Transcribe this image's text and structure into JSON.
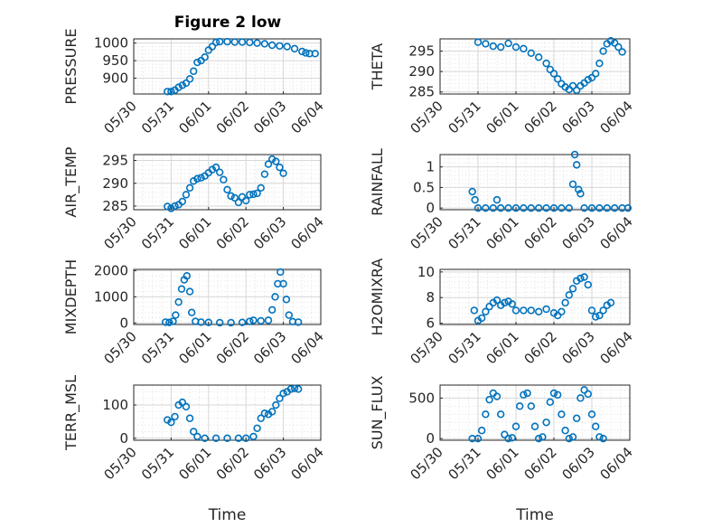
{
  "figure": {
    "title": "Figure 2 low"
  },
  "colors": {
    "marker": "#0072BD",
    "axis": "#262626",
    "grid": "#d7d7d7"
  },
  "chart_data": [
    {
      "type": "scatter",
      "id": "pressure",
      "ylabel": "PRESSURE",
      "yticks": [
        "900",
        "950",
        "1000"
      ],
      "ytick_values": [
        900,
        950,
        1000
      ],
      "ylim": [
        855,
        1012
      ],
      "x_start": "05/30",
      "xticks": [
        "05/30",
        "05/31",
        "06/01",
        "06/02",
        "06/03",
        "06/04"
      ],
      "xlim_days": [
        0,
        5
      ],
      "xlabel": "",
      "points": [
        [
          0.9,
          862
        ],
        [
          1.0,
          862
        ],
        [
          1.1,
          866
        ],
        [
          1.2,
          874
        ],
        [
          1.3,
          880
        ],
        [
          1.4,
          886
        ],
        [
          1.5,
          898
        ],
        [
          1.6,
          920
        ],
        [
          1.7,
          945
        ],
        [
          1.8,
          950
        ],
        [
          1.9,
          960
        ],
        [
          2.0,
          980
        ],
        [
          2.1,
          990
        ],
        [
          2.2,
          1002
        ],
        [
          2.3,
          1004
        ],
        [
          2.5,
          1004
        ],
        [
          2.7,
          1003
        ],
        [
          2.9,
          1003
        ],
        [
          3.1,
          1002
        ],
        [
          3.3,
          1000
        ],
        [
          3.5,
          998
        ],
        [
          3.7,
          994
        ],
        [
          3.9,
          992
        ],
        [
          4.1,
          990
        ],
        [
          4.3,
          984
        ],
        [
          4.5,
          976
        ],
        [
          4.6,
          972
        ],
        [
          4.7,
          970
        ],
        [
          4.85,
          970
        ]
      ]
    },
    {
      "type": "scatter",
      "id": "theta",
      "ylabel": "THETA",
      "yticks": [
        "285",
        "290",
        "295"
      ],
      "ytick_values": [
        285,
        290,
        295
      ],
      "ylim": [
        284.5,
        298
      ],
      "x_start": "05/30",
      "xticks": [
        "05/30",
        "05/31",
        "06/01",
        "06/02",
        "06/03",
        "06/04"
      ],
      "xlim_days": [
        0,
        5
      ],
      "xlabel": "",
      "points": [
        [
          1.0,
          297.2
        ],
        [
          1.2,
          296.8
        ],
        [
          1.4,
          296.2
        ],
        [
          1.6,
          296.0
        ],
        [
          1.8,
          296.9
        ],
        [
          2.0,
          296.0
        ],
        [
          2.2,
          295.6
        ],
        [
          2.4,
          294.5
        ],
        [
          2.6,
          293.5
        ],
        [
          2.8,
          292.0
        ],
        [
          2.9,
          290.5
        ],
        [
          3.0,
          289.5
        ],
        [
          3.1,
          288.2
        ],
        [
          3.2,
          287.0
        ],
        [
          3.3,
          286.2
        ],
        [
          3.4,
          285.6
        ],
        [
          3.5,
          286.5
        ],
        [
          3.6,
          285.4
        ],
        [
          3.7,
          286.5
        ],
        [
          3.8,
          287.2
        ],
        [
          3.9,
          288.0
        ],
        [
          4.0,
          288.5
        ],
        [
          4.1,
          289.5
        ],
        [
          4.2,
          292.0
        ],
        [
          4.3,
          295.0
        ],
        [
          4.4,
          296.8
        ],
        [
          4.5,
          297.5
        ],
        [
          4.6,
          297.0
        ],
        [
          4.7,
          296.0
        ],
        [
          4.8,
          294.8
        ]
      ]
    },
    {
      "type": "scatter",
      "id": "air_temp",
      "ylabel": "AIR_TEMP",
      "yticks": [
        "285",
        "290",
        "295"
      ],
      "ytick_values": [
        285,
        290,
        295
      ],
      "ylim": [
        284.2,
        296.3
      ],
      "x_start": "05/30",
      "xticks": [
        "05/30",
        "05/31",
        "06/01",
        "06/02",
        "06/03",
        "06/04"
      ],
      "xlim_days": [
        0,
        5
      ],
      "xlabel": "",
      "points": [
        [
          0.9,
          284.9
        ],
        [
          1.0,
          284.5
        ],
        [
          1.1,
          285.0
        ],
        [
          1.2,
          285.3
        ],
        [
          1.3,
          286.0
        ],
        [
          1.4,
          287.5
        ],
        [
          1.5,
          289.0
        ],
        [
          1.6,
          290.5
        ],
        [
          1.7,
          291.0
        ],
        [
          1.8,
          291.2
        ],
        [
          1.9,
          291.6
        ],
        [
          2.0,
          292.3
        ],
        [
          2.1,
          293.0
        ],
        [
          2.2,
          293.5
        ],
        [
          2.3,
          292.4
        ],
        [
          2.4,
          290.8
        ],
        [
          2.5,
          288.6
        ],
        [
          2.6,
          287.2
        ],
        [
          2.7,
          286.8
        ],
        [
          2.8,
          285.8
        ],
        [
          2.9,
          287.0
        ],
        [
          3.0,
          286.2
        ],
        [
          3.1,
          287.5
        ],
        [
          3.2,
          287.6
        ],
        [
          3.3,
          287.8
        ],
        [
          3.4,
          289.0
        ],
        [
          3.5,
          292.0
        ],
        [
          3.6,
          294.2
        ],
        [
          3.7,
          295.3
        ],
        [
          3.8,
          294.8
        ],
        [
          3.9,
          293.5
        ],
        [
          4.0,
          292.2
        ]
      ]
    },
    {
      "type": "scatter",
      "id": "rainfall",
      "ylabel": "RAINFALL",
      "yticks": [
        "0",
        "0.5",
        "1"
      ],
      "ytick_values": [
        0,
        0.5,
        1
      ],
      "ylim": [
        -0.04,
        1.3
      ],
      "x_start": "05/30",
      "xticks": [
        "05/30",
        "05/31",
        "06/01",
        "06/02",
        "06/03",
        "06/04"
      ],
      "xlim_days": [
        0,
        5
      ],
      "xlabel": "",
      "points": [
        [
          0.85,
          0.4
        ],
        [
          0.92,
          0.2
        ],
        [
          1.0,
          0
        ],
        [
          1.2,
          0
        ],
        [
          1.4,
          0
        ],
        [
          1.5,
          0.2
        ],
        [
          1.6,
          0
        ],
        [
          1.8,
          0
        ],
        [
          2.0,
          0
        ],
        [
          2.2,
          0
        ],
        [
          2.4,
          0
        ],
        [
          2.6,
          0
        ],
        [
          2.8,
          0
        ],
        [
          3.0,
          0
        ],
        [
          3.2,
          0
        ],
        [
          3.4,
          0
        ],
        [
          3.5,
          0.58
        ],
        [
          3.55,
          1.3
        ],
        [
          3.6,
          1.05
        ],
        [
          3.65,
          0.45
        ],
        [
          3.7,
          0.35
        ],
        [
          3.8,
          0
        ],
        [
          4.0,
          0
        ],
        [
          4.2,
          0
        ],
        [
          4.4,
          0
        ],
        [
          4.6,
          0
        ],
        [
          4.8,
          0
        ],
        [
          4.95,
          0
        ]
      ]
    },
    {
      "type": "scatter",
      "id": "mixdepth",
      "ylabel": "MIXDEPTH",
      "yticks": [
        "0",
        "1000",
        "2000"
      ],
      "ytick_values": [
        0,
        1000,
        2000
      ],
      "ylim": [
        -60,
        2050
      ],
      "x_start": "05/30",
      "xticks": [
        "05/30",
        "05/31",
        "06/01",
        "06/02",
        "06/03",
        "06/04"
      ],
      "xlim_days": [
        0,
        5
      ],
      "xlabel": "",
      "points": [
        [
          0.85,
          30
        ],
        [
          0.95,
          20
        ],
        [
          1.05,
          60
        ],
        [
          1.12,
          300
        ],
        [
          1.2,
          800
        ],
        [
          1.28,
          1300
        ],
        [
          1.35,
          1650
        ],
        [
          1.42,
          1800
        ],
        [
          1.5,
          1200
        ],
        [
          1.55,
          400
        ],
        [
          1.65,
          60
        ],
        [
          1.8,
          30
        ],
        [
          2.0,
          20
        ],
        [
          2.3,
          10
        ],
        [
          2.6,
          10
        ],
        [
          2.9,
          20
        ],
        [
          3.1,
          60
        ],
        [
          3.2,
          100
        ],
        [
          3.4,
          80
        ],
        [
          3.6,
          100
        ],
        [
          3.7,
          500
        ],
        [
          3.78,
          1000
        ],
        [
          3.85,
          1500
        ],
        [
          3.92,
          1950
        ],
        [
          4.0,
          1500
        ],
        [
          4.08,
          900
        ],
        [
          4.15,
          300
        ],
        [
          4.25,
          50
        ],
        [
          4.4,
          30
        ]
      ]
    },
    {
      "type": "scatter",
      "id": "h2omixra",
      "ylabel": "H2OMIXRA",
      "yticks": [
        "6",
        "8",
        "10"
      ],
      "ytick_values": [
        6,
        8,
        10
      ],
      "ylim": [
        5.9,
        10.2
      ],
      "x_start": "05/30",
      "xticks": [
        "05/30",
        "05/31",
        "06/01",
        "06/02",
        "06/03",
        "06/04"
      ],
      "xlim_days": [
        0,
        5
      ],
      "xlabel": "",
      "points": [
        [
          0.9,
          7.0
        ],
        [
          1.0,
          6.2
        ],
        [
          1.1,
          6.4
        ],
        [
          1.2,
          6.9
        ],
        [
          1.3,
          7.3
        ],
        [
          1.4,
          7.6
        ],
        [
          1.5,
          7.8
        ],
        [
          1.6,
          7.4
        ],
        [
          1.7,
          7.6
        ],
        [
          1.8,
          7.7
        ],
        [
          1.9,
          7.5
        ],
        [
          2.0,
          7.0
        ],
        [
          2.2,
          7.0
        ],
        [
          2.4,
          7.0
        ],
        [
          2.6,
          6.9
        ],
        [
          2.8,
          7.1
        ],
        [
          3.0,
          6.8
        ],
        [
          3.1,
          6.6
        ],
        [
          3.2,
          6.9
        ],
        [
          3.3,
          7.6
        ],
        [
          3.4,
          8.2
        ],
        [
          3.5,
          8.7
        ],
        [
          3.6,
          9.3
        ],
        [
          3.7,
          9.5
        ],
        [
          3.8,
          9.6
        ],
        [
          3.9,
          9.0
        ],
        [
          4.0,
          7.0
        ],
        [
          4.1,
          6.5
        ],
        [
          4.2,
          6.6
        ],
        [
          4.3,
          7.0
        ],
        [
          4.4,
          7.4
        ],
        [
          4.5,
          7.6
        ]
      ]
    },
    {
      "type": "scatter",
      "id": "terr_msl",
      "ylabel": "TERR_MSL",
      "yticks": [
        "0",
        "100"
      ],
      "ytick_values": [
        0,
        100
      ],
      "ylim": [
        -6,
        160
      ],
      "x_start": "05/30",
      "xticks": [
        "05/30",
        "05/31",
        "06/01",
        "06/02",
        "06/03",
        "06/04"
      ],
      "xlim_days": [
        0,
        5
      ],
      "xlabel": "Time",
      "points": [
        [
          0.9,
          55
        ],
        [
          1.0,
          48
        ],
        [
          1.1,
          65
        ],
        [
          1.2,
          100
        ],
        [
          1.3,
          108
        ],
        [
          1.4,
          95
        ],
        [
          1.5,
          60
        ],
        [
          1.6,
          20
        ],
        [
          1.7,
          5
        ],
        [
          1.9,
          0
        ],
        [
          2.2,
          0
        ],
        [
          2.5,
          0
        ],
        [
          2.8,
          0
        ],
        [
          3.0,
          0
        ],
        [
          3.2,
          5
        ],
        [
          3.3,
          30
        ],
        [
          3.4,
          60
        ],
        [
          3.5,
          75
        ],
        [
          3.6,
          72
        ],
        [
          3.7,
          80
        ],
        [
          3.8,
          100
        ],
        [
          3.9,
          120
        ],
        [
          4.0,
          135
        ],
        [
          4.1,
          140
        ],
        [
          4.2,
          148
        ],
        [
          4.3,
          150
        ],
        [
          4.4,
          148
        ]
      ]
    },
    {
      "type": "scatter",
      "id": "sun_flux",
      "ylabel": "SUN_FLUX",
      "yticks": [
        "0",
        "500"
      ],
      "ytick_values": [
        0,
        500
      ],
      "ylim": [
        -20,
        660
      ],
      "x_start": "05/30",
      "xticks": [
        "05/30",
        "05/31",
        "06/01",
        "06/02",
        "06/03",
        "06/04"
      ],
      "xlim_days": [
        0,
        5
      ],
      "xlabel": "Time",
      "points": [
        [
          0.85,
          0
        ],
        [
          1.0,
          0
        ],
        [
          1.1,
          100
        ],
        [
          1.2,
          300
        ],
        [
          1.3,
          480
        ],
        [
          1.4,
          560
        ],
        [
          1.5,
          520
        ],
        [
          1.6,
          300
        ],
        [
          1.7,
          50
        ],
        [
          1.8,
          0
        ],
        [
          1.9,
          10
        ],
        [
          2.0,
          150
        ],
        [
          2.1,
          400
        ],
        [
          2.2,
          540
        ],
        [
          2.3,
          560
        ],
        [
          2.4,
          400
        ],
        [
          2.5,
          150
        ],
        [
          2.6,
          0
        ],
        [
          2.7,
          20
        ],
        [
          2.8,
          200
        ],
        [
          2.9,
          450
        ],
        [
          3.0,
          560
        ],
        [
          3.1,
          540
        ],
        [
          3.2,
          300
        ],
        [
          3.3,
          100
        ],
        [
          3.4,
          0
        ],
        [
          3.5,
          20
        ],
        [
          3.6,
          250
        ],
        [
          3.7,
          500
        ],
        [
          3.8,
          600
        ],
        [
          3.9,
          550
        ],
        [
          4.0,
          300
        ],
        [
          4.1,
          150
        ],
        [
          4.2,
          20
        ],
        [
          4.3,
          0
        ]
      ]
    }
  ]
}
